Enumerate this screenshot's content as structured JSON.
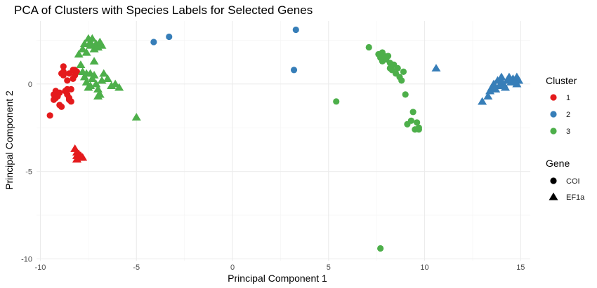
{
  "chart_data": {
    "type": "scatter",
    "title": "PCA of Clusters with Species Labels for Selected Genes",
    "xlabel": "Principal Component 1",
    "ylabel": "Principal Component 2",
    "xlim": [
      -10.2,
      15.5
    ],
    "ylim": [
      -10.1,
      3.6
    ],
    "x_ticks": [
      -10,
      -5,
      0,
      5,
      10,
      15
    ],
    "x_tick_labels": [
      "-10",
      "-5",
      "0",
      "5",
      "10",
      "15"
    ],
    "y_ticks": [
      -10,
      -5,
      0
    ],
    "y_tick_labels": [
      "-10",
      "-5",
      "0"
    ],
    "grid": true,
    "legend_placement": "right",
    "cluster_legend": {
      "title": "Cluster",
      "items": [
        {
          "label": "1",
          "color": "#e41a1c"
        },
        {
          "label": "2",
          "color": "#377eb8"
        },
        {
          "label": "3",
          "color": "#4daf4a"
        }
      ]
    },
    "gene_legend": {
      "title": "Gene",
      "items": [
        {
          "label": "COI",
          "shape": "circle"
        },
        {
          "label": "EF1a",
          "shape": "triangle"
        }
      ]
    },
    "series": [
      {
        "cluster": "1",
        "gene": "COI",
        "color": "#e41a1c",
        "shape": "circle",
        "points": [
          [
            -9.5,
            -1.8
          ],
          [
            -9.3,
            -0.9
          ],
          [
            -9.3,
            -0.6
          ],
          [
            -9.2,
            -0.8
          ],
          [
            -9.1,
            -0.7
          ],
          [
            -9.0,
            -1.2
          ],
          [
            -9.0,
            -0.5
          ],
          [
            -8.9,
            -1.3
          ],
          [
            -8.9,
            0.6
          ],
          [
            -8.8,
            1.0
          ],
          [
            -8.8,
            0.5
          ],
          [
            -8.8,
            0.7
          ],
          [
            -8.7,
            -0.4
          ],
          [
            -8.6,
            -0.3
          ],
          [
            -8.6,
            -0.6
          ],
          [
            -8.5,
            -0.8
          ],
          [
            -8.5,
            0.6
          ],
          [
            -8.4,
            -0.3
          ],
          [
            -8.4,
            -1.0
          ],
          [
            -8.3,
            0.8
          ],
          [
            -8.3,
            0.3
          ],
          [
            -8.2,
            0.5
          ],
          [
            -8.2,
            0.8
          ],
          [
            -8.1,
            0.7
          ],
          [
            -9.2,
            -0.4
          ],
          [
            -8.6,
            0.2
          ],
          [
            -8.5,
            -0.9
          ]
        ]
      },
      {
        "cluster": "1",
        "gene": "EF1a",
        "color": "#e41a1c",
        "shape": "triangle",
        "points": [
          [
            -8.2,
            -3.7
          ],
          [
            -8.1,
            -3.9
          ],
          [
            -8.1,
            -4.1
          ],
          [
            -8.0,
            -4.0
          ],
          [
            -8.0,
            -4.2
          ],
          [
            -7.9,
            -4.1
          ],
          [
            -7.9,
            -4.2
          ],
          [
            -8.1,
            -4.3
          ],
          [
            -7.8,
            -4.2
          ]
        ]
      },
      {
        "cluster": "2",
        "gene": "COI",
        "color": "#377eb8",
        "shape": "circle",
        "points": [
          [
            -4.1,
            2.4
          ],
          [
            -3.3,
            2.7
          ],
          [
            3.3,
            3.1
          ],
          [
            3.2,
            0.8
          ]
        ]
      },
      {
        "cluster": "2",
        "gene": "EF1a",
        "color": "#377eb8",
        "shape": "triangle",
        "points": [
          [
            10.6,
            0.9
          ],
          [
            13.0,
            -1.0
          ],
          [
            13.3,
            -0.7
          ],
          [
            13.4,
            -0.4
          ],
          [
            13.5,
            -0.2
          ],
          [
            13.6,
            0.0
          ],
          [
            13.7,
            -0.3
          ],
          [
            13.8,
            0.2
          ],
          [
            13.9,
            -0.1
          ],
          [
            14.0,
            0.4
          ],
          [
            14.1,
            0.0
          ],
          [
            14.2,
            -0.2
          ],
          [
            14.3,
            0.2
          ],
          [
            14.4,
            0.4
          ],
          [
            14.5,
            0.1
          ],
          [
            14.6,
            0.3
          ],
          [
            14.7,
            0.2
          ],
          [
            14.8,
            0.4
          ],
          [
            14.9,
            0.2
          ],
          [
            14.8,
            0.0
          ],
          [
            14.7,
            0.1
          ],
          [
            13.6,
            -0.1
          ],
          [
            14.0,
            0.1
          ]
        ]
      },
      {
        "cluster": "3",
        "gene": "COI",
        "color": "#4daf4a",
        "shape": "circle",
        "points": [
          [
            5.4,
            -1.0
          ],
          [
            7.1,
            2.1
          ],
          [
            7.6,
            1.7
          ],
          [
            7.7,
            1.5
          ],
          [
            7.8,
            1.8
          ],
          [
            7.8,
            1.3
          ],
          [
            7.9,
            1.6
          ],
          [
            8.0,
            1.4
          ],
          [
            8.1,
            1.6
          ],
          [
            8.2,
            1.2
          ],
          [
            8.2,
            0.9
          ],
          [
            8.3,
            0.8
          ],
          [
            8.4,
            1.1
          ],
          [
            8.5,
            0.6
          ],
          [
            8.6,
            0.9
          ],
          [
            8.7,
            0.4
          ],
          [
            8.8,
            0.2
          ],
          [
            8.9,
            0.7
          ],
          [
            9.0,
            -0.6
          ],
          [
            9.1,
            -2.3
          ],
          [
            9.3,
            -2.1
          ],
          [
            9.4,
            -1.6
          ],
          [
            9.5,
            -2.6
          ],
          [
            9.6,
            -2.2
          ],
          [
            9.7,
            -2.5
          ],
          [
            9.7,
            -2.6
          ],
          [
            7.7,
            -9.4
          ]
        ]
      },
      {
        "cluster": "3",
        "gene": "EF1a",
        "color": "#4daf4a",
        "shape": "triangle",
        "points": [
          [
            -8.0,
            1.7
          ],
          [
            -7.8,
            2.0
          ],
          [
            -7.7,
            2.3
          ],
          [
            -7.6,
            1.8
          ],
          [
            -7.5,
            2.6
          ],
          [
            -7.4,
            2.4
          ],
          [
            -7.4,
            2.2
          ],
          [
            -7.3,
            2.6
          ],
          [
            -7.2,
            2.0
          ],
          [
            -7.1,
            2.3
          ],
          [
            -7.0,
            2.1
          ],
          [
            -6.9,
            2.4
          ],
          [
            -6.8,
            2.2
          ],
          [
            -7.9,
            1.1
          ],
          [
            -7.8,
            0.7
          ],
          [
            -7.7,
            0.4
          ],
          [
            -7.6,
            0.1
          ],
          [
            -7.5,
            -0.2
          ],
          [
            -7.4,
            0.6
          ],
          [
            -7.3,
            0.3
          ],
          [
            -7.2,
            0.5
          ],
          [
            -7.1,
            0.0
          ],
          [
            -7.0,
            -0.3
          ],
          [
            -6.9,
            -0.6
          ],
          [
            -6.8,
            0.2
          ],
          [
            -6.7,
            0.6
          ],
          [
            -6.5,
            0.3
          ],
          [
            -6.3,
            -0.1
          ],
          [
            -6.1,
            0.0
          ],
          [
            -5.9,
            -0.2
          ],
          [
            -7.6,
            0.6
          ],
          [
            -7.4,
            -0.1
          ],
          [
            -7.0,
            -0.7
          ],
          [
            -5.0,
            -1.9
          ],
          [
            -7.2,
            1.3
          ]
        ]
      }
    ]
  }
}
